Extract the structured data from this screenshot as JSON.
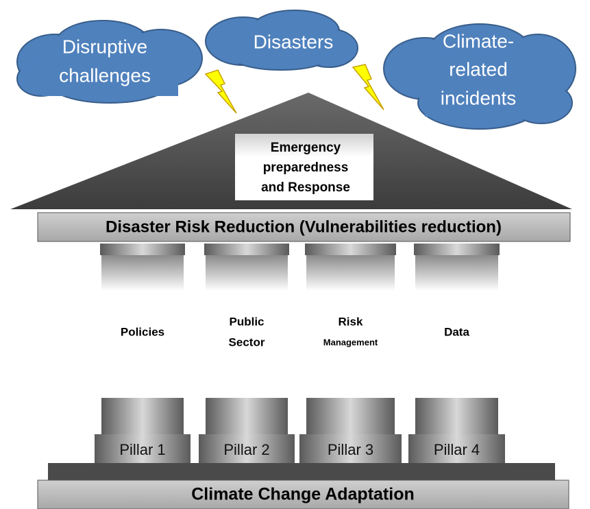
{
  "clouds": [
    {
      "lines": [
        "Disruptive",
        "challenges"
      ]
    },
    {
      "lines": [
        "Disasters"
      ]
    },
    {
      "lines": [
        "Climate-",
        "related",
        "incidents"
      ]
    }
  ],
  "roof": {
    "lines": [
      "Emergency",
      "preparedness",
      "and Response"
    ]
  },
  "beam": {
    "label": "Disaster Risk Reduction (Vulnerabilities reduction)"
  },
  "pillars": [
    {
      "lines": [
        "Policies"
      ],
      "base": "Pillar 1"
    },
    {
      "lines": [
        "Public",
        "Sector"
      ],
      "base": "Pillar 2"
    },
    {
      "lines": [
        "Risk",
        "Management"
      ],
      "base": "Pillar 3"
    },
    {
      "lines": [
        "Data"
      ],
      "base": "Pillar 4"
    }
  ],
  "foundation": {
    "label": "Climate Change Adaptation"
  }
}
